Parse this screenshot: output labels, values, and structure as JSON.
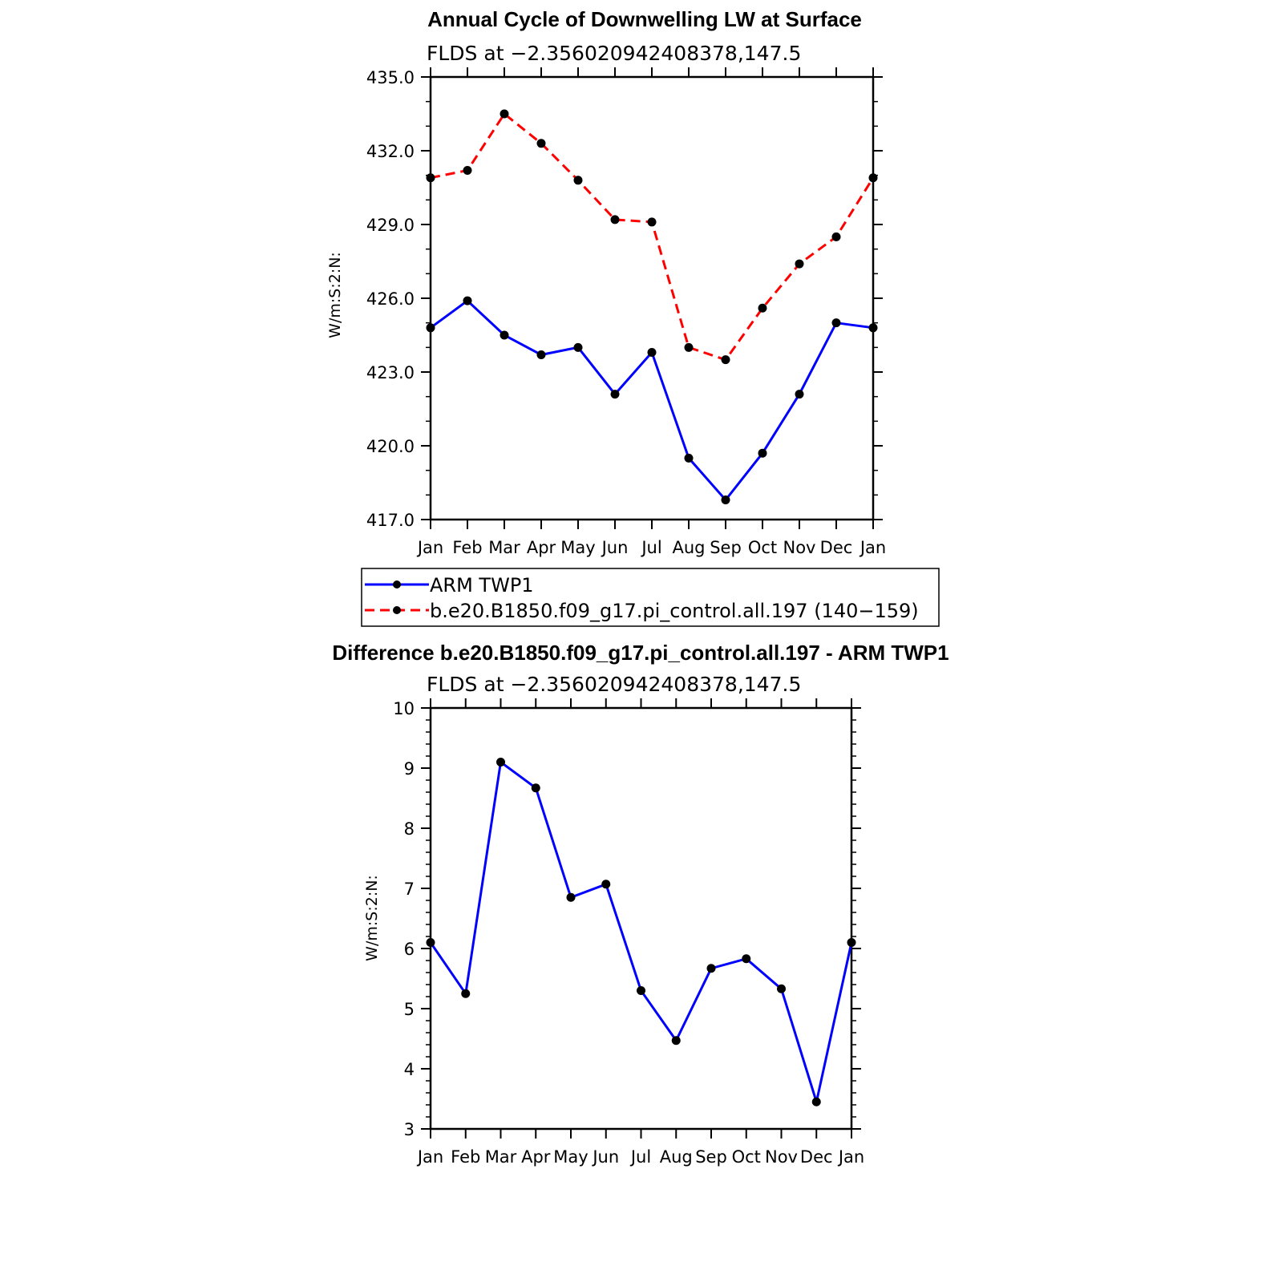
{
  "chart_data": [
    {
      "type": "line",
      "title": "Annual Cycle of Downwelling LW at Surface",
      "subtitle": "FLDS at −2.356020942408378,147.5",
      "ylabel": "W/m:S:2:N:",
      "ylim": [
        417.0,
        435.0
      ],
      "yticks": [
        "435.0",
        "432.0",
        "429.0",
        "426.0",
        "423.0",
        "420.0",
        "417.0"
      ],
      "categories": [
        "Jan",
        "Feb",
        "Mar",
        "Apr",
        "May",
        "Jun",
        "Jul",
        "Aug",
        "Sep",
        "Oct",
        "Nov",
        "Dec",
        "Jan"
      ],
      "series": [
        {
          "name": "ARM TWP1",
          "color": "#0000ff",
          "dash": "solid",
          "values": [
            424.8,
            425.9,
            424.5,
            423.7,
            424.0,
            422.1,
            423.8,
            419.5,
            417.8,
            419.7,
            422.1,
            425.0,
            424.8
          ]
        },
        {
          "name": "b.e20.B1850.f09_g17.pi_control.all.197 (140−159)",
          "color": "#ff0000",
          "dash": "dashed",
          "values": [
            430.9,
            431.2,
            433.5,
            432.3,
            430.8,
            429.2,
            429.1,
            424.0,
            423.5,
            425.6,
            427.4,
            428.5,
            430.9
          ]
        }
      ],
      "legend_position": "below"
    },
    {
      "type": "line",
      "title": "Difference b.e20.B1850.f09_g17.pi_control.all.197 - ARM TWP1",
      "subtitle": "FLDS at −2.356020942408378,147.5",
      "ylabel": "W/m:S:2:N:",
      "ylim": [
        3,
        10
      ],
      "yticks": [
        "10",
        "9",
        "8",
        "7",
        "6",
        "5",
        "4",
        "3"
      ],
      "categories": [
        "Jan",
        "Feb",
        "Mar",
        "Apr",
        "May",
        "Jun",
        "Jul",
        "Aug",
        "Sep",
        "Oct",
        "Nov",
        "Dec",
        "Jan"
      ],
      "series": [
        {
          "color": "#0000ff",
          "dash": "solid",
          "values": [
            6.1,
            5.25,
            9.1,
            8.67,
            6.85,
            7.07,
            5.3,
            4.47,
            5.67,
            5.83,
            5.33,
            3.45,
            6.1
          ]
        }
      ]
    }
  ]
}
